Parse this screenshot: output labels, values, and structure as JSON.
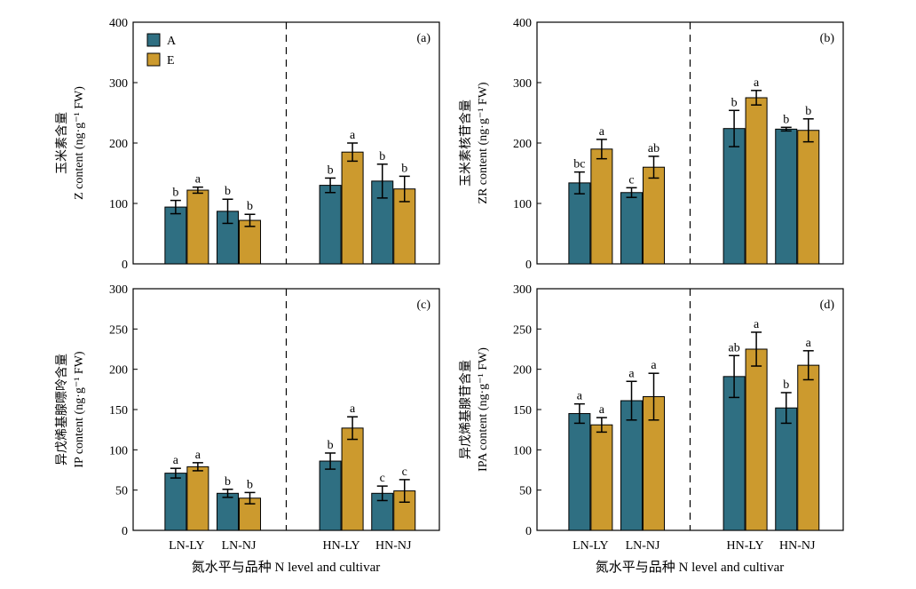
{
  "figure": {
    "xlabel": "氮水平与品种 N level and cultivar"
  },
  "legend": [
    {
      "name": "A",
      "color": "#2f6f82"
    },
    {
      "name": "E",
      "color": "#cc9a2e"
    }
  ],
  "chart_data": [
    {
      "type": "bar",
      "panel": "(a)",
      "ylabel_cn": "玉米素含量",
      "ylabel_en": "Z content (ng·g⁻¹ FW)",
      "ylim": [
        0,
        400
      ],
      "yticks": [
        0,
        100,
        200,
        300,
        400
      ],
      "categories": [
        "LN-LY",
        "LN-NJ",
        "HN-LY",
        "HN-NJ"
      ],
      "show_xticklabels": false,
      "show_legend": true,
      "series": [
        {
          "name": "A",
          "values": [
            94,
            87,
            130,
            137
          ],
          "errors": [
            11,
            20,
            12,
            28
          ],
          "letters": [
            "b",
            "b",
            "b",
            "b"
          ]
        },
        {
          "name": "E",
          "values": [
            122,
            72,
            185,
            124
          ],
          "errors": [
            5,
            10,
            15,
            21
          ],
          "letters": [
            "a",
            "b",
            "a",
            "b"
          ]
        }
      ]
    },
    {
      "type": "bar",
      "panel": "(b)",
      "ylabel_cn": "玉米素核苷含量",
      "ylabel_en": "ZR content (ng·g⁻¹ FW)",
      "ylim": [
        0,
        400
      ],
      "yticks": [
        0,
        100,
        200,
        300,
        400
      ],
      "categories": [
        "LN-LY",
        "LN-NJ",
        "HN-LY",
        "HN-NJ"
      ],
      "show_xticklabels": false,
      "show_legend": false,
      "series": [
        {
          "name": "A",
          "values": [
            134,
            118,
            224,
            223
          ],
          "errors": [
            18,
            8,
            30,
            3
          ],
          "letters": [
            "bc",
            "c",
            "b",
            "b"
          ]
        },
        {
          "name": "E",
          "values": [
            190,
            160,
            275,
            221
          ],
          "errors": [
            16,
            18,
            12,
            19
          ],
          "letters": [
            "a",
            "ab",
            "a",
            "b"
          ]
        }
      ]
    },
    {
      "type": "bar",
      "panel": "(c)",
      "ylabel_cn": "异戊烯基腺嘌呤含量",
      "ylabel_en": "IP content (ng·g⁻¹ FW)",
      "ylim": [
        0,
        300
      ],
      "yticks": [
        0,
        50,
        100,
        150,
        200,
        250,
        300
      ],
      "categories": [
        "LN-LY",
        "LN-NJ",
        "HN-LY",
        "HN-NJ"
      ],
      "show_xticklabels": true,
      "show_legend": false,
      "series": [
        {
          "name": "A",
          "values": [
            71,
            46,
            86,
            46
          ],
          "errors": [
            6,
            5,
            10,
            9
          ],
          "letters": [
            "a",
            "b",
            "b",
            "c"
          ]
        },
        {
          "name": "E",
          "values": [
            79,
            40,
            127,
            49
          ],
          "errors": [
            5,
            7,
            14,
            14
          ],
          "letters": [
            "a",
            "b",
            "a",
            "c"
          ]
        }
      ]
    },
    {
      "type": "bar",
      "panel": "(d)",
      "ylabel_cn": "异戊烯基腺苷含量",
      "ylabel_en": "IPA content (ng·g⁻¹ FW)",
      "ylim": [
        0,
        300
      ],
      "yticks": [
        0,
        50,
        100,
        150,
        200,
        250,
        300
      ],
      "categories": [
        "LN-LY",
        "LN-NJ",
        "HN-LY",
        "HN-NJ"
      ],
      "show_xticklabels": true,
      "show_legend": false,
      "series": [
        {
          "name": "A",
          "values": [
            145,
            161,
            191,
            152
          ],
          "errors": [
            12,
            24,
            26,
            19
          ],
          "letters": [
            "a",
            "a",
            "ab",
            "b"
          ]
        },
        {
          "name": "E",
          "values": [
            131,
            166,
            225,
            205
          ],
          "errors": [
            9,
            29,
            21,
            18
          ],
          "letters": [
            "a",
            "a",
            "a",
            "a"
          ]
        }
      ]
    }
  ]
}
